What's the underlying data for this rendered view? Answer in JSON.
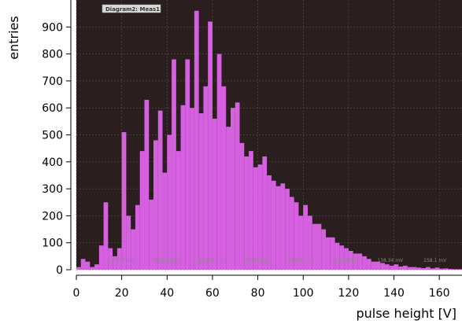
{
  "chart_data": {
    "type": "bar",
    "xlabel": "pulse height [V]",
    "ylabel": "entries",
    "xlim": [
      0,
      170
    ],
    "ylim": [
      0,
      1000
    ],
    "x_ticks": [
      0,
      20,
      40,
      60,
      80,
      100,
      120,
      140,
      160
    ],
    "y_ticks": [
      0,
      100,
      200,
      300,
      400,
      500,
      600,
      700,
      800,
      900
    ],
    "grid": true,
    "bar_color": "#d561e0",
    "background_color": "#2a1e1e",
    "scope_panel_title": "Diagram2: Meas1",
    "scope_overlay_labels": [
      "19.763 mV",
      "39.526 mV",
      "59.289 mV",
      "79.052 mV",
      "98.814 mV",
      "118.58 mV",
      "138.34 mV",
      "158.1 mV"
    ],
    "scope_overlay_label_x": [
      19.763,
      39.526,
      59.289,
      79.052,
      98.814,
      118.58,
      138.34,
      158.1
    ],
    "x": [
      0,
      2,
      4,
      6,
      8,
      10,
      12,
      14,
      16,
      18,
      20,
      22,
      24,
      26,
      28,
      30,
      32,
      34,
      36,
      38,
      40,
      42,
      44,
      46,
      48,
      50,
      52,
      54,
      56,
      58,
      60,
      62,
      64,
      66,
      68,
      70,
      72,
      74,
      76,
      78,
      80,
      82,
      84,
      86,
      88,
      90,
      92,
      94,
      96,
      98,
      100,
      102,
      104,
      106,
      108,
      110,
      112,
      114,
      116,
      118,
      120,
      122,
      124,
      126,
      128,
      130,
      132,
      134,
      136,
      138,
      140,
      142,
      144,
      146,
      148,
      150,
      152,
      154,
      156,
      158,
      160,
      162,
      164,
      166,
      168
    ],
    "values": [
      10,
      40,
      30,
      10,
      20,
      90,
      250,
      80,
      50,
      80,
      510,
      200,
      150,
      240,
      440,
      630,
      260,
      480,
      590,
      360,
      500,
      780,
      440,
      610,
      780,
      600,
      960,
      580,
      680,
      920,
      560,
      800,
      680,
      530,
      600,
      620,
      470,
      420,
      440,
      380,
      390,
      420,
      350,
      330,
      310,
      320,
      300,
      270,
      250,
      200,
      240,
      200,
      170,
      170,
      150,
      120,
      120,
      100,
      90,
      80,
      70,
      60,
      60,
      50,
      40,
      30,
      30,
      25,
      20,
      15,
      20,
      12,
      15,
      10,
      10,
      8,
      6,
      10,
      5,
      8,
      4,
      5,
      3,
      2,
      2
    ]
  }
}
